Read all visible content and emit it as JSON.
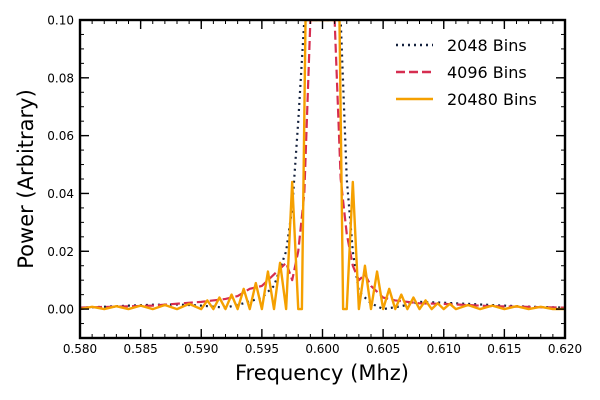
{
  "chart_data": {
    "type": "line",
    "title": "",
    "xlabel": "Frequency (Mhz)",
    "ylabel": "Power (Arbitrary)",
    "xlim": [
      0.58,
      0.62
    ],
    "ylim": [
      -0.01,
      0.1
    ],
    "grid": false,
    "legend_position": "top-right",
    "x_ticks": [
      "0.580",
      "0.585",
      "0.590",
      "0.595",
      "0.600",
      "0.605",
      "0.610",
      "0.615",
      "0.620"
    ],
    "y_ticks": [
      "0.00",
      "0.02",
      "0.04",
      "0.06",
      "0.08",
      "0.10"
    ],
    "series": [
      {
        "name": "2048 Bins",
        "color": "#14213d",
        "style": "dotted",
        "x": [
          0.58,
          0.582,
          0.584,
          0.586,
          0.588,
          0.59,
          0.592,
          0.5935,
          0.595,
          0.596,
          0.597,
          0.5975,
          0.598,
          0.5985,
          0.599,
          0.601,
          0.6015,
          0.602,
          0.6025,
          0.603,
          0.604,
          0.605,
          0.6065,
          0.608,
          0.61,
          0.612,
          0.614,
          0.616,
          0.618,
          0.62
        ],
        "y": [
          0.0005,
          0.0008,
          0.0012,
          0.0015,
          0.0016,
          0.0012,
          0.0005,
          0.002,
          0.004,
          0.008,
          0.02,
          0.035,
          0.065,
          0.1,
          0.1,
          0.1,
          0.1,
          0.045,
          0.02,
          0.006,
          0.002,
          0.0,
          0.001,
          0.0025,
          0.0022,
          0.0018,
          0.0014,
          0.001,
          0.0007,
          0.0005
        ]
      },
      {
        "name": "4096 Bins",
        "color": "#d62d50",
        "style": "dashed",
        "x": [
          0.58,
          0.586,
          0.59,
          0.592,
          0.593,
          0.594,
          0.595,
          0.596,
          0.597,
          0.5975,
          0.598,
          0.5985,
          0.599,
          0.601,
          0.6015,
          0.602,
          0.6025,
          0.603,
          0.6035,
          0.604,
          0.605,
          0.606,
          0.608,
          0.61,
          0.614,
          0.62
        ],
        "y": [
          0.0005,
          0.0012,
          0.0025,
          0.0035,
          0.0045,
          0.007,
          0.008,
          0.012,
          0.016,
          0.01,
          0.02,
          0.04,
          0.1,
          0.1,
          0.045,
          0.026,
          0.015,
          0.01,
          0.012,
          0.008,
          0.004,
          0.003,
          0.002,
          0.0018,
          0.001,
          0.0005
        ]
      },
      {
        "name": "20480 Bins",
        "color": "#f5a000",
        "style": "solid",
        "x": [
          0.58,
          0.581,
          0.582,
          0.583,
          0.584,
          0.585,
          0.586,
          0.587,
          0.588,
          0.589,
          0.59,
          0.5905,
          0.591,
          0.5915,
          0.592,
          0.5925,
          0.593,
          0.5935,
          0.594,
          0.5945,
          0.595,
          0.5955,
          0.596,
          0.5965,
          0.597,
          0.5975,
          0.598,
          0.5983,
          0.5986,
          0.599,
          0.601,
          0.6014,
          0.6017,
          0.602,
          0.6025,
          0.603,
          0.6035,
          0.604,
          0.6045,
          0.605,
          0.6055,
          0.606,
          0.6065,
          0.607,
          0.6075,
          0.608,
          0.6085,
          0.609,
          0.6095,
          0.61,
          0.6105,
          0.611,
          0.612,
          0.613,
          0.614,
          0.615,
          0.616,
          0.617,
          0.618,
          0.619,
          0.62
        ],
        "y": [
          0.0,
          0.0008,
          0.0,
          0.001,
          0.0,
          0.0012,
          0.0,
          0.0014,
          0.0,
          0.0018,
          0.0,
          0.003,
          0.0,
          0.004,
          0.0,
          0.005,
          0.0,
          0.007,
          0.0,
          0.009,
          0.0,
          0.013,
          0.0,
          0.016,
          0.0,
          0.044,
          0.0,
          0.0,
          0.1,
          0.1,
          0.1,
          0.1,
          0.0,
          0.0,
          0.044,
          0.0,
          0.015,
          0.0,
          0.013,
          0.0,
          0.007,
          0.0,
          0.005,
          0.0,
          0.004,
          0.0,
          0.003,
          0.0,
          0.002,
          0.0,
          0.0018,
          0.0,
          0.0014,
          0.0,
          0.0012,
          0.0,
          0.001,
          0.0,
          0.0008,
          0.0,
          0.0
        ]
      }
    ]
  }
}
